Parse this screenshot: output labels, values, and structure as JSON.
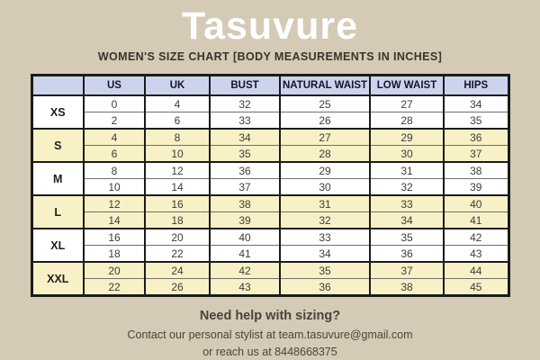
{
  "colors": {
    "background": "#d4cab6",
    "header_row_bg": "#ccd3ed",
    "shaded_row_bg": "#f8f1c6",
    "plain_row_bg": "#ffffff",
    "table_border": "#1b1b1b",
    "title_color": "#ffffff",
    "text_dark": "#3a332a"
  },
  "header": {
    "title": "Tasuvure",
    "subtitle": "WOMEN'S SIZE CHART [BODY MEASUREMENTS IN INCHES]"
  },
  "table": {
    "corner_label": "",
    "columns": [
      "US",
      "UK",
      "BUST",
      "NATURAL WAIST",
      "LOW WAIST",
      "HIPS"
    ],
    "groups": [
      {
        "size": "XS",
        "shaded": false,
        "rows": [
          [
            0,
            4,
            32,
            25,
            27,
            34
          ],
          [
            2,
            6,
            33,
            26,
            28,
            35
          ]
        ]
      },
      {
        "size": "S",
        "shaded": true,
        "rows": [
          [
            4,
            8,
            34,
            27,
            29,
            36
          ],
          [
            6,
            10,
            35,
            28,
            30,
            37
          ]
        ]
      },
      {
        "size": "M",
        "shaded": false,
        "rows": [
          [
            8,
            12,
            36,
            29,
            31,
            38
          ],
          [
            10,
            14,
            37,
            30,
            32,
            39
          ]
        ]
      },
      {
        "size": "L",
        "shaded": true,
        "rows": [
          [
            12,
            16,
            38,
            31,
            33,
            40
          ],
          [
            14,
            18,
            39,
            32,
            34,
            41
          ]
        ]
      },
      {
        "size": "XL",
        "shaded": false,
        "rows": [
          [
            16,
            20,
            40,
            33,
            35,
            42
          ],
          [
            18,
            22,
            41,
            34,
            36,
            43
          ]
        ]
      },
      {
        "size": "XXL",
        "shaded": true,
        "rows": [
          [
            20,
            24,
            42,
            35,
            37,
            44
          ],
          [
            22,
            26,
            43,
            36,
            38,
            45
          ]
        ]
      }
    ]
  },
  "footer": {
    "help": "Need help with sizing?",
    "contact": "Contact our personal stylist at team.tasuvure@gmail.com",
    "phone": "or reach us at 8448668375"
  }
}
